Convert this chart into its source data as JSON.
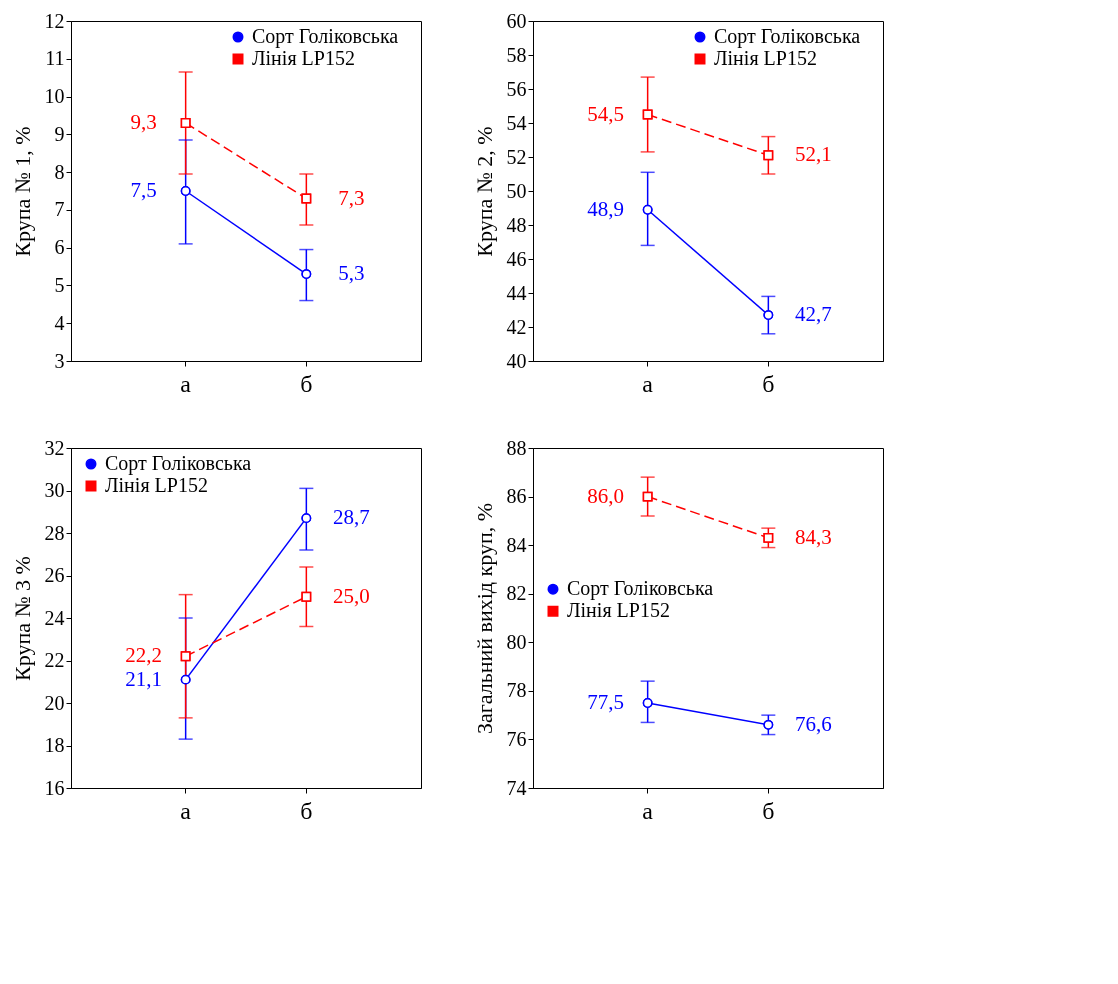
{
  "chart_data": [
    {
      "type": "line",
      "ylabel": "Крупа № 1,  %",
      "categories": [
        "а",
        "б"
      ],
      "ylim": [
        3,
        12
      ],
      "yticks": [
        3,
        4,
        5,
        6,
        7,
        8,
        9,
        10,
        11,
        12
      ],
      "legend": "top right",
      "marker": "circle",
      "series": [
        {
          "name": "Сорт Голіковська",
          "color": "#0000ff",
          "marker": "circle",
          "line_style": "solid",
          "values": [
            7.5,
            5.3
          ],
          "errors": [
            [
              6.1,
              8.85
            ],
            [
              4.6,
              5.95
            ]
          ],
          "value_labels": [
            "7,5",
            "5,3"
          ]
        },
        {
          "name": "Лінія LP152",
          "color": "#ff0000",
          "marker": "square",
          "line_style": "dashed",
          "values": [
            9.3,
            7.3
          ],
          "errors": [
            [
              7.95,
              10.65
            ],
            [
              6.6,
              7.95
            ]
          ],
          "value_labels": [
            "9,3",
            "7,3"
          ]
        }
      ]
    },
    {
      "type": "line",
      "ylabel": "Крупа № 2, %",
      "categories": [
        "а",
        "б"
      ],
      "ylim": [
        40,
        60
      ],
      "yticks": [
        40,
        42,
        44,
        46,
        48,
        50,
        52,
        54,
        56,
        58,
        60
      ],
      "legend": "top right",
      "marker": "circle",
      "series": [
        {
          "name": "Сорт Голіковська",
          "color": "#0000ff",
          "marker": "circle",
          "line_style": "solid",
          "values": [
            48.9,
            42.7
          ],
          "errors": [
            [
              46.8,
              51.1
            ],
            [
              41.6,
              43.8
            ]
          ],
          "value_labels": [
            "48,9",
            "42,7"
          ]
        },
        {
          "name": "Лінія LP152",
          "color": "#ff0000",
          "marker": "square",
          "line_style": "dashed",
          "values": [
            54.5,
            52.1
          ],
          "errors": [
            [
              52.3,
              56.7
            ],
            [
              51.0,
              53.2
            ]
          ],
          "value_labels": [
            "54,5",
            "52,1"
          ]
        }
      ]
    },
    {
      "type": "line",
      "ylabel": "Крупа № 3 %",
      "categories": [
        "а",
        "б"
      ],
      "ylim": [
        16,
        32
      ],
      "yticks": [
        16,
        18,
        20,
        22,
        24,
        26,
        28,
        30,
        32
      ],
      "legend": "top left",
      "marker": "circle",
      "series": [
        {
          "name": "Сорт Голіковська",
          "color": "#0000ff",
          "marker": "circle",
          "line_style": "solid",
          "values": [
            21.1,
            28.7
          ],
          "errors": [
            [
              18.3,
              24.0
            ],
            [
              27.2,
              30.1
            ]
          ],
          "value_labels": [
            "21,1",
            "28,7"
          ]
        },
        {
          "name": "Лінія LP152",
          "color": "#ff0000",
          "marker": "square",
          "line_style": "dashed",
          "values": [
            22.2,
            25.0
          ],
          "errors": [
            [
              19.3,
              25.1
            ],
            [
              23.6,
              26.4
            ]
          ],
          "value_labels": [
            "22,2",
            "25,0"
          ]
        }
      ]
    },
    {
      "type": "line",
      "ylabel": "Загальний вихід круп, %",
      "categories": [
        "а",
        "б"
      ],
      "ylim": [
        74,
        88
      ],
      "yticks": [
        74,
        76,
        78,
        80,
        82,
        84,
        86,
        88
      ],
      "legend": "left",
      "marker": "circle",
      "series": [
        {
          "name": "Сорт Голіковська",
          "color": "#0000ff",
          "marker": "circle",
          "line_style": "solid",
          "values": [
            77.5,
            76.6
          ],
          "errors": [
            [
              76.7,
              78.4
            ],
            [
              76.2,
              77.0
            ]
          ],
          "value_labels": [
            "77,5",
            "76,6"
          ]
        },
        {
          "name": "Лінія LP152",
          "color": "#ff0000",
          "marker": "square",
          "line_style": "dashed",
          "values": [
            86.0,
            84.3
          ],
          "errors": [
            [
              85.2,
              86.8
            ],
            [
              83.9,
              84.7
            ]
          ],
          "value_labels": [
            "86,0",
            "84,3"
          ]
        }
      ]
    }
  ]
}
